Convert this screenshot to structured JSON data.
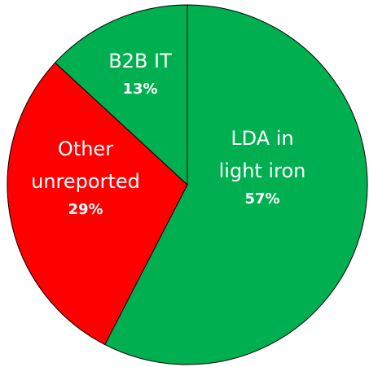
{
  "chart_data": {
    "type": "pie",
    "categories": [
      "LDA in light iron",
      "Other unreported",
      "B2B IT"
    ],
    "values": [
      57,
      29,
      13
    ],
    "value_labels": [
      "57%",
      "29%",
      "13%"
    ],
    "colors": [
      "#00b050",
      "#ff0000",
      "#00b050"
    ]
  }
}
